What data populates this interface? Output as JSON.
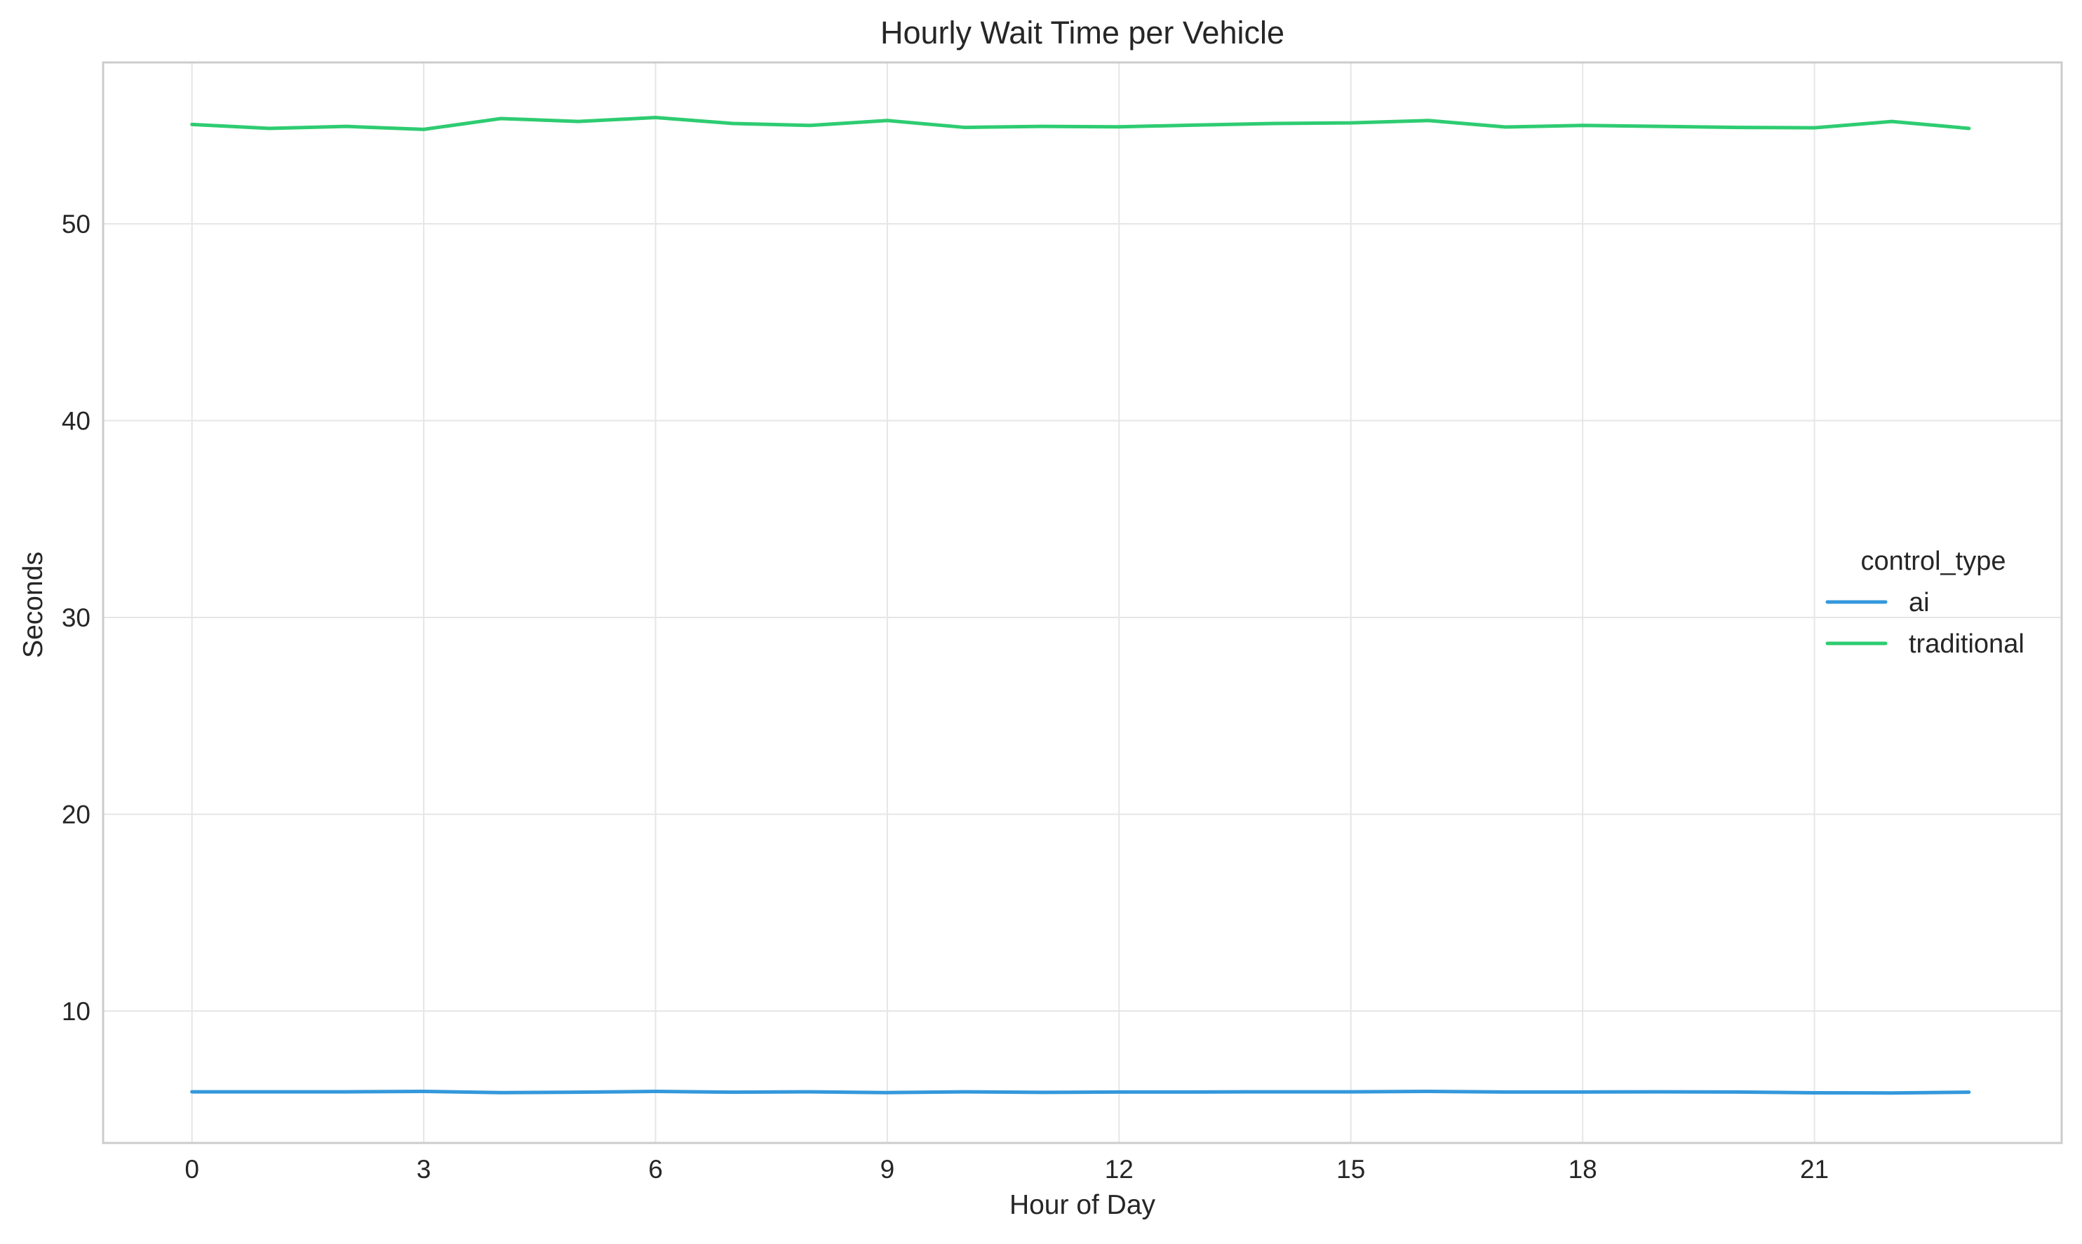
{
  "chart_data": {
    "type": "line",
    "title": "Hourly Wait Time per Vehicle",
    "xlabel": "Hour of Day",
    "ylabel": "Seconds",
    "x": [
      0,
      1,
      2,
      3,
      4,
      5,
      6,
      7,
      8,
      9,
      10,
      11,
      12,
      13,
      14,
      15,
      16,
      17,
      18,
      19,
      20,
      21,
      22,
      23
    ],
    "xlim": [
      -1.15,
      24.2
    ],
    "ylim": [
      3.3,
      58.2
    ],
    "xticks": [
      0,
      3,
      6,
      9,
      12,
      15,
      18,
      21
    ],
    "yticks": [
      10,
      20,
      30,
      40,
      50
    ],
    "grid": true,
    "legend": {
      "title": "control_type",
      "placement": "center-right"
    },
    "series": [
      {
        "name": "ai",
        "color": "#3498db",
        "values": [
          5.9,
          5.9,
          5.9,
          5.92,
          5.86,
          5.88,
          5.92,
          5.88,
          5.9,
          5.86,
          5.9,
          5.87,
          5.89,
          5.89,
          5.9,
          5.9,
          5.92,
          5.89,
          5.89,
          5.9,
          5.89,
          5.85,
          5.84,
          5.88
        ]
      },
      {
        "name": "traditional",
        "color": "#2ecc71",
        "values": [
          55.05,
          54.85,
          54.95,
          54.8,
          55.35,
          55.2,
          55.4,
          55.1,
          55.0,
          55.25,
          54.9,
          54.95,
          54.93,
          55.02,
          55.1,
          55.13,
          55.25,
          54.92,
          55.0,
          54.95,
          54.9,
          54.88,
          55.2,
          54.85
        ]
      }
    ]
  }
}
